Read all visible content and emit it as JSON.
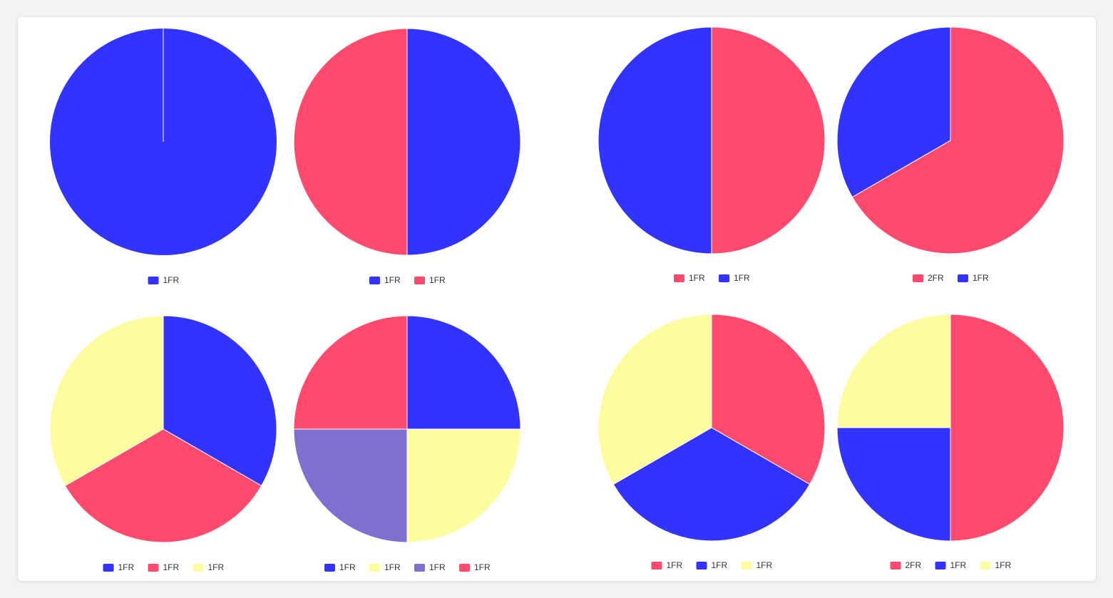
{
  "chart_data": [
    {
      "type": "pie",
      "categories": [
        "1FR"
      ],
      "values": [
        1
      ],
      "colors": [
        "#3333ff"
      ]
    },
    {
      "type": "pie",
      "categories": [
        "1FR",
        "1FR"
      ],
      "values": [
        1,
        1
      ],
      "colors": [
        "#3333ff",
        "#ff4a6e"
      ]
    },
    {
      "type": "pie",
      "categories": [
        "1FR",
        "1FR"
      ],
      "values": [
        1,
        1
      ],
      "colors": [
        "#ff4a6e",
        "#3333ff"
      ]
    },
    {
      "type": "pie",
      "categories": [
        "2FR",
        "1FR"
      ],
      "values": [
        2,
        1
      ],
      "colors": [
        "#ff4a6e",
        "#3333ff"
      ]
    },
    {
      "type": "pie",
      "categories": [
        "1FR",
        "1FR",
        "1FR"
      ],
      "values": [
        1,
        1,
        1
      ],
      "colors": [
        "#3333ff",
        "#ff4a6e",
        "#fdfda0"
      ]
    },
    {
      "type": "pie",
      "categories": [
        "1FR",
        "1FR",
        "1FR",
        "1FR"
      ],
      "values": [
        1,
        1,
        1,
        1
      ],
      "colors": [
        "#3333ff",
        "#fdfda0",
        "#7f6fce",
        "#ff4a6e"
      ]
    },
    {
      "type": "pie",
      "categories": [
        "1FR",
        "1FR",
        "1FR"
      ],
      "values": [
        1,
        1,
        1
      ],
      "colors": [
        "#ff4a6e",
        "#3333ff",
        "#fdfda0"
      ]
    },
    {
      "type": "pie",
      "categories": [
        "2FR",
        "1FR",
        "1FR"
      ],
      "values": [
        2,
        1,
        1
      ],
      "colors": [
        "#ff4a6e",
        "#3333ff",
        "#fdfda0"
      ]
    }
  ]
}
